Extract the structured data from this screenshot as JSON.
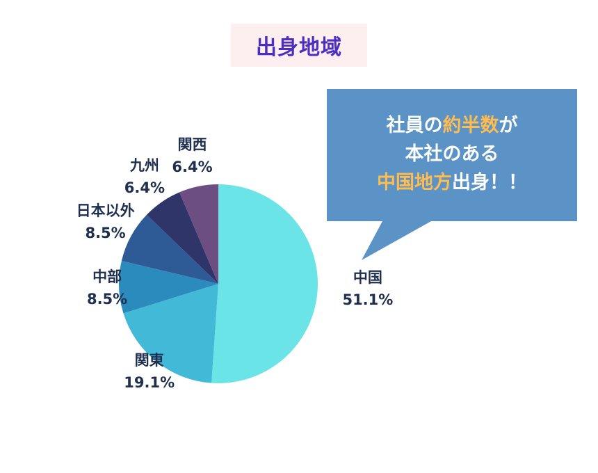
{
  "title": "出身地域",
  "callout": {
    "line1_prefix": "社員の",
    "line1_highlight": "約半数",
    "line1_suffix": "が",
    "line2": "本社のある",
    "line3_highlight": "中国地方",
    "line3_suffix": "出身！！",
    "bg_color": "#5b93c6",
    "highlight_color": "#ffbc4f"
  },
  "chart_data": {
    "type": "pie",
    "title": "出身地域",
    "slices": [
      {
        "label": "中国",
        "value": 51.1,
        "display": "51.1%",
        "color": "#6ae4e7"
      },
      {
        "label": "関東",
        "value": 19.1,
        "display": "19.1%",
        "color": "#43b9d8"
      },
      {
        "label": "中部",
        "value": 8.5,
        "display": "8.5%",
        "color": "#2c8bbd"
      },
      {
        "label": "日本以外",
        "value": 8.5,
        "display": "8.5%",
        "color": "#2e5b96"
      },
      {
        "label": "九州",
        "value": 6.4,
        "display": "6.4%",
        "color": "#2f3568"
      },
      {
        "label": "関西",
        "value": 6.4,
        "display": "6.4%",
        "color": "#6d4e82"
      }
    ]
  }
}
